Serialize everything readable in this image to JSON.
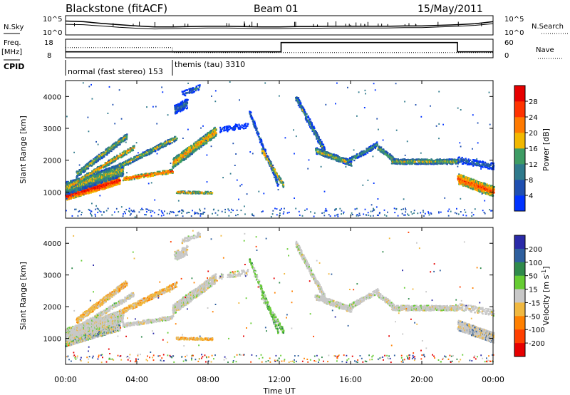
{
  "header": {
    "title": "Blackstone (fitACF)",
    "beam": "Beam 01",
    "date": "15/May/2011"
  },
  "left_labels": {
    "nsky": "N.Sky",
    "freq_top": "Freq.",
    "freq_unit": "[MHz]",
    "cpid": "CPID"
  },
  "right_labels": {
    "nsearch": "N.Search",
    "nave": "Nave"
  },
  "cpid": {
    "first": "normal (fast stereo) 153",
    "second": "themis (tau) 3310"
  },
  "colors": {
    "power": [
      "#0033ff",
      "#1f4fb0",
      "#2f7a8c",
      "#3e9c64",
      "#f2b800",
      "#ff7a00",
      "#ff3300",
      "#e60000"
    ],
    "velocity": [
      "#2a2aa8",
      "#2e5f9e",
      "#2f8a4b",
      "#66cc33",
      "#c8c8c8",
      "#f0b840",
      "#ff8000",
      "#ff4000",
      "#e60000"
    ]
  },
  "chart_data": [
    {
      "type": "line",
      "panel": "noise",
      "left_axis": {
        "label": "N.Sky",
        "ticks": [
          "10^5",
          "10^0"
        ]
      },
      "right_axis": {
        "label": "N.Search",
        "ticks": [
          "10^5",
          "10^0"
        ]
      },
      "x": [
        0,
        1,
        2,
        3,
        4,
        5,
        6,
        7,
        8,
        9,
        10,
        11,
        12,
        13,
        14,
        15,
        16,
        17,
        18,
        19,
        20,
        21,
        22,
        23,
        24
      ],
      "series": [
        {
          "values": [
            3.8,
            3.6,
            3.1,
            2.7,
            2.3,
            2.0,
            2.0,
            2.1,
            2.2,
            2.2,
            2.1,
            2.0,
            2.0,
            2.1,
            2.1,
            2.2,
            2.2,
            2.2,
            2.2,
            2.3,
            2.3,
            2.5,
            2.7,
            3.0,
            3.6
          ]
        },
        {
          "values": [
            2.8,
            2.7,
            2.3,
            1.9,
            1.6,
            1.4,
            1.5,
            1.6,
            1.7,
            1.7,
            1.6,
            1.5,
            1.5,
            1.6,
            1.6,
            1.7,
            1.7,
            1.7,
            1.7,
            1.8,
            1.8,
            2.0,
            2.2,
            2.5,
            3.0
          ]
        }
      ]
    },
    {
      "type": "line",
      "panel": "frequency_nave",
      "left_axis": {
        "label": "Freq. [MHz]",
        "ticks": [
          8,
          18
        ]
      },
      "right_axis": {
        "label": "Nave",
        "ticks": [
          0,
          60
        ]
      },
      "frequency_steps": [
        {
          "start": 0,
          "end": 6,
          "value": 11
        },
        {
          "start": 6,
          "end": 12.1,
          "value": 11
        },
        {
          "start": 12.1,
          "end": 22,
          "value": 17.2
        },
        {
          "start": 22,
          "end": 24,
          "value": 11
        }
      ],
      "nave_steps": [
        {
          "start": 0,
          "end": 6,
          "value": 35
        },
        {
          "start": 6,
          "end": 24,
          "value": 15
        }
      ]
    },
    {
      "type": "heatmap",
      "panel": "power",
      "ylabel": "Slant Range [km]",
      "yticks": [
        1000,
        2000,
        3000,
        4000
      ],
      "ylim": [
        180,
        4500
      ],
      "xlim": [
        0,
        24
      ],
      "colorbar": {
        "label": "Power [dB]",
        "ticks": [
          4,
          8,
          12,
          16,
          20,
          24,
          28
        ]
      }
    },
    {
      "type": "heatmap",
      "panel": "velocity",
      "ylabel": "Slant Range [km]",
      "xlabel": "Time UT",
      "yticks": [
        1000,
        2000,
        3000,
        4000
      ],
      "ylim": [
        180,
        4500
      ],
      "xlim": [
        0,
        24
      ],
      "xticks": [
        "00:00",
        "04:00",
        "08:00",
        "12:00",
        "16:00",
        "20:00",
        "00:00"
      ],
      "colorbar": {
        "label": "Velocity [m s^-1]",
        "ticks": [
          200,
          100,
          50,
          15,
          -15,
          -50,
          -100,
          -200
        ]
      }
    }
  ]
}
